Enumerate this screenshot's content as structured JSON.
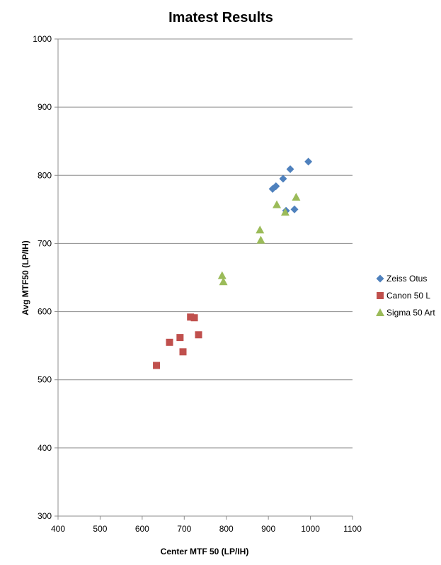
{
  "chart_data": {
    "type": "scatter",
    "title": "Imatest Results",
    "xlabel": "Center MTF 50 (LP/IH)",
    "ylabel": "Avg MTF50 (LP/IH)",
    "xlim": [
      400,
      1100
    ],
    "ylim": [
      300,
      1000
    ],
    "xticks": [
      400,
      500,
      600,
      700,
      800,
      900,
      1000,
      1100
    ],
    "yticks": [
      300,
      400,
      500,
      600,
      700,
      800,
      900,
      1000
    ],
    "grid": "horizontal",
    "legend_position": "right",
    "series": [
      {
        "name": "Zeiss Otus",
        "marker": "diamond",
        "color": "#4f81bd",
        "points": [
          [
            995,
            820
          ],
          [
            952,
            809
          ],
          [
            935,
            795
          ],
          [
            918,
            784
          ],
          [
            910,
            780
          ],
          [
            962,
            750
          ],
          [
            942,
            748
          ]
        ]
      },
      {
        "name": "Canon 50 L",
        "marker": "square",
        "color": "#c0504d",
        "points": [
          [
            715,
            592
          ],
          [
            724,
            591
          ],
          [
            690,
            562
          ],
          [
            734,
            566
          ],
          [
            665,
            555
          ],
          [
            697,
            541
          ],
          [
            634,
            521
          ]
        ]
      },
      {
        "name": "Sigma 50 Art",
        "marker": "triangle",
        "color": "#9bbb59",
        "points": [
          [
            966,
            768
          ],
          [
            920,
            757
          ],
          [
            940,
            746
          ],
          [
            880,
            720
          ],
          [
            882,
            705
          ],
          [
            790,
            653
          ],
          [
            793,
            644
          ]
        ]
      }
    ]
  }
}
